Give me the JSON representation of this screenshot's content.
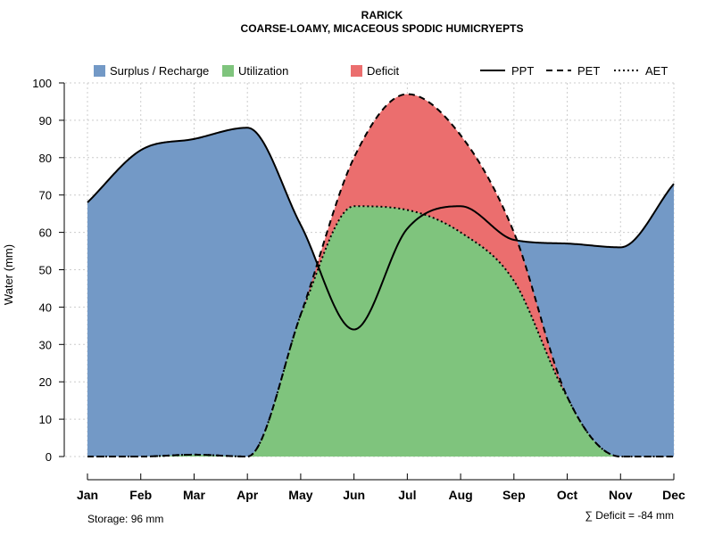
{
  "chart_data": {
    "type": "area",
    "title": "RARICK",
    "subtitle": "COARSE-LOAMY, MICACEOUS SPODIC HUMICRYEPTS",
    "xlabel": "",
    "ylabel": "Water (mm)",
    "ylim": [
      0,
      100
    ],
    "yticks": [
      "0",
      "10",
      "20",
      "30",
      "40",
      "50",
      "60",
      "70",
      "80",
      "90",
      "100"
    ],
    "categories": [
      "Jan",
      "Feb",
      "Mar",
      "Apr",
      "May",
      "Jun",
      "Jul",
      "Aug",
      "Sep",
      "Oct",
      "Nov",
      "Dec"
    ],
    "grid": true,
    "series": [
      {
        "name": "PPT",
        "style": "solid",
        "values": [
          68,
          82,
          85,
          88,
          62,
          34,
          61,
          67,
          58,
          57,
          56,
          73
        ]
      },
      {
        "name": "PET",
        "style": "dashed",
        "values": [
          0,
          0,
          0.5,
          0,
          38,
          80,
          97,
          86,
          60,
          16,
          0,
          0
        ]
      },
      {
        "name": "AET",
        "style": "dotted",
        "values": [
          0,
          0,
          0.5,
          0,
          38,
          67,
          66,
          60,
          47,
          16,
          0,
          0
        ]
      }
    ],
    "areas": [
      {
        "name": "Surplus / Recharge",
        "color": "#7399C6"
      },
      {
        "name": "Utilization",
        "color": "#7FC47D"
      },
      {
        "name": "Deficit",
        "color": "#EB6E6E"
      }
    ],
    "legend_position": "top",
    "storage_note": "Storage: 96 mm",
    "deficit_note": "∑ Deficit = -84 mm"
  }
}
